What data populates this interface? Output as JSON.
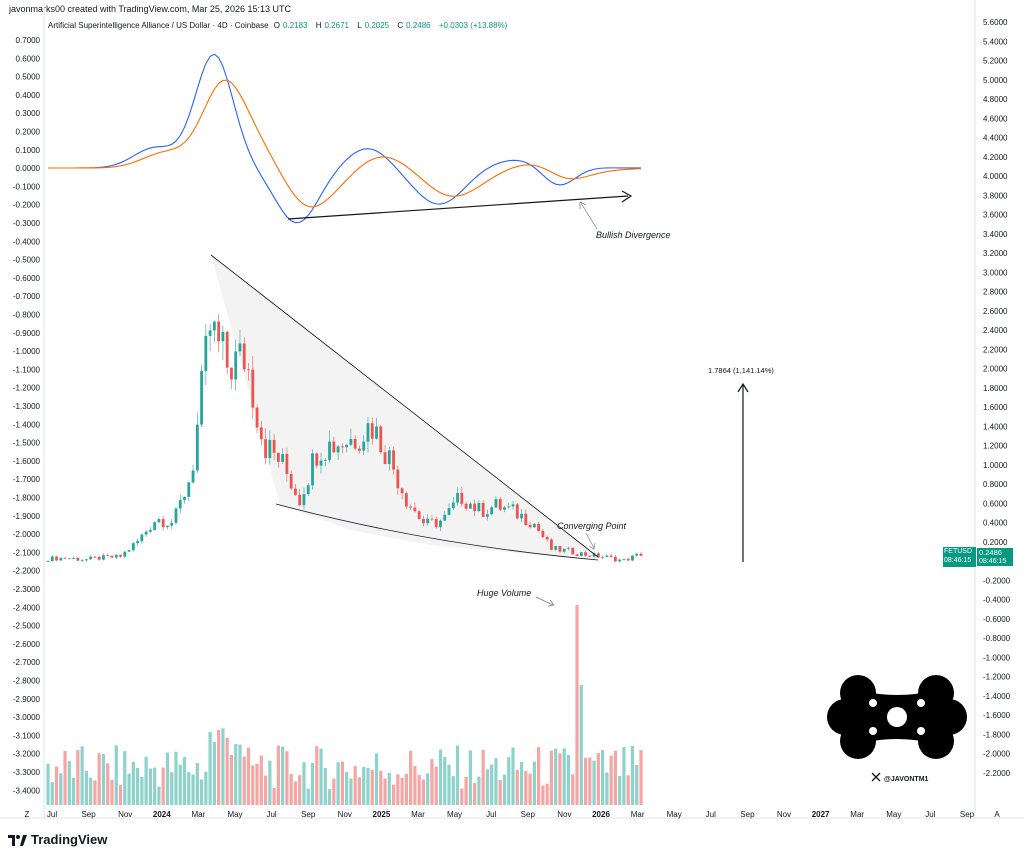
{
  "header": {
    "credit": "javonmarks00 created with TradingView.com, Mar 25, 2026 15:13 UTC",
    "symbol_title": "Artificial Superintelligence Alliance / US Dollar · 4D · Coinbase",
    "ohlc": [
      {
        "label": "O",
        "value": "0.2183"
      },
      {
        "label": "H",
        "value": "0.2671"
      },
      {
        "label": "L",
        "value": "0.2025"
      },
      {
        "label": "C",
        "value": "0.2486"
      }
    ],
    "change": "+0.0303 (+13.88%)"
  },
  "price_tag": {
    "ticker": "FETUSD",
    "price": "0.2486",
    "countdown": "08:46:15",
    "color": "#089981"
  },
  "annotations": {
    "bullish_divergence": "Bullish Divergence",
    "target": "1.7864 (1,141.14%)",
    "converging_point": "Converging Point",
    "huge_volume": "Huge Volume"
  },
  "watermark": {
    "handle": "@JAVONTM1",
    "x_icon": "x-logo-icon",
    "logo": "blob-logo-icon"
  },
  "branding": {
    "name": "TradingView",
    "icon": "tradingview-logo-icon"
  },
  "axis_corner_labels": {
    "left": "Z",
    "right": "A"
  },
  "colors": {
    "up": "#26a69a",
    "down": "#ef5350",
    "vol_up": "#8fd1cb",
    "vol_down": "#f5a5a3",
    "macd": "#2962ff",
    "signal": "#ff6d00",
    "accent": "#089981"
  },
  "chart_data": {
    "type": "candlestick",
    "symbol": "FETUSD",
    "right_axis_ticks": [
      "5.6000",
      "5.4000",
      "5.2000",
      "5.0000",
      "4.8000",
      "4.6000",
      "4.4000",
      "4.2000",
      "4.0000",
      "3.8000",
      "3.6000",
      "3.4000",
      "3.2000",
      "3.0000",
      "2.8000",
      "2.6000",
      "2.4000",
      "2.2000",
      "2.0000",
      "1.8000",
      "1.6000",
      "1.4000",
      "1.2000",
      "1.0000",
      "0.8000",
      "0.6000",
      "0.4000",
      "0.2000",
      "0.0000",
      "-0.2000",
      "-0.4000",
      "-0.6000",
      "-0.8000",
      "-1.0000",
      "-1.2000",
      "-1.4000",
      "-1.6000",
      "-1.8000",
      "-2.0000",
      "-2.2000"
    ],
    "left_axis_ticks": [
      "0.7000",
      "0.6000",
      "0.5000",
      "0.4000",
      "0.3000",
      "0.2000",
      "0.1000",
      "0.0000",
      "-0.1000",
      "-0.2000",
      "-0.3000",
      "-0.4000",
      "-0.5000",
      "-0.6000",
      "-0.7000",
      "-0.8000",
      "-0.9000",
      "-1.0000",
      "-1.1000",
      "-1.2000",
      "-1.3000",
      "-1.4000",
      "-1.5000",
      "-1.6000",
      "-1.7000",
      "-1.8000",
      "-1.9000",
      "-2.0000",
      "-2.1000",
      "-2.2000",
      "-2.3000",
      "-2.4000",
      "-2.5000",
      "-2.6000",
      "-2.7000",
      "-2.8000",
      "-2.9000",
      "-3.0000",
      "-3.1000",
      "-3.2000",
      "-3.3000",
      "-3.4000"
    ],
    "time_axis": [
      {
        "label": "Jul",
        "bold": false
      },
      {
        "label": "Sep",
        "bold": false
      },
      {
        "label": "Nov",
        "bold": false
      },
      {
        "label": "2024",
        "bold": true
      },
      {
        "label": "Mar",
        "bold": false
      },
      {
        "label": "May",
        "bold": false
      },
      {
        "label": "Jul",
        "bold": false
      },
      {
        "label": "Sep",
        "bold": false
      },
      {
        "label": "Nov",
        "bold": false
      },
      {
        "label": "2025",
        "bold": true
      },
      {
        "label": "Mar",
        "bold": false
      },
      {
        "label": "May",
        "bold": false
      },
      {
        "label": "Jul",
        "bold": false
      },
      {
        "label": "Sep",
        "bold": false
      },
      {
        "label": "Nov",
        "bold": false
      },
      {
        "label": "2026",
        "bold": true
      },
      {
        "label": "Mar",
        "bold": false
      },
      {
        "label": "May",
        "bold": false
      },
      {
        "label": "Jul",
        "bold": false
      },
      {
        "label": "Sep",
        "bold": false
      },
      {
        "label": "Nov",
        "bold": false
      },
      {
        "label": "2027",
        "bold": true
      },
      {
        "label": "Mar",
        "bold": false
      },
      {
        "label": "May",
        "bold": false
      },
      {
        "label": "Jul",
        "bold": false
      },
      {
        "label": "Sep",
        "bold": false
      }
    ],
    "price_series": [
      {
        "t": "2023-06",
        "v": 0.2
      },
      {
        "t": "2023-07",
        "v": 0.21
      },
      {
        "t": "2023-08",
        "v": 0.19
      },
      {
        "t": "2023-09",
        "v": 0.21
      },
      {
        "t": "2023-10",
        "v": 0.22
      },
      {
        "t": "2023-11",
        "v": 0.38
      },
      {
        "t": "2023-12",
        "v": 0.62
      },
      {
        "t": "2024-01",
        "v": 0.58
      },
      {
        "t": "2024-02",
        "v": 1.1
      },
      {
        "t": "2024-03",
        "v": 2.6
      },
      {
        "t": "2024-04",
        "v": 2.2
      },
      {
        "t": "2024-05",
        "v": 2.3
      },
      {
        "t": "2024-06",
        "v": 1.4
      },
      {
        "t": "2024-07",
        "v": 1.2
      },
      {
        "t": "2024-08",
        "v": 0.82
      },
      {
        "t": "2024-09",
        "v": 1.35
      },
      {
        "t": "2024-10",
        "v": 1.4
      },
      {
        "t": "2024-11",
        "v": 1.45
      },
      {
        "t": "2024-12",
        "v": 1.6
      },
      {
        "t": "2025-01",
        "v": 1.25
      },
      {
        "t": "2025-02",
        "v": 0.8
      },
      {
        "t": "2025-03",
        "v": 0.55
      },
      {
        "t": "2025-04",
        "v": 0.6
      },
      {
        "t": "2025-05",
        "v": 0.85
      },
      {
        "t": "2025-06",
        "v": 0.7
      },
      {
        "t": "2025-07",
        "v": 0.75
      },
      {
        "t": "2025-08",
        "v": 0.68
      },
      {
        "t": "2025-09",
        "v": 0.58
      },
      {
        "t": "2025-10",
        "v": 0.3
      },
      {
        "t": "2025-11",
        "v": 0.28
      },
      {
        "t": "2025-12",
        "v": 0.24
      },
      {
        "t": "2026-01",
        "v": 0.22
      },
      {
        "t": "2026-02",
        "v": 0.18
      },
      {
        "t": "2026-03",
        "v": 0.25
      }
    ]
  }
}
